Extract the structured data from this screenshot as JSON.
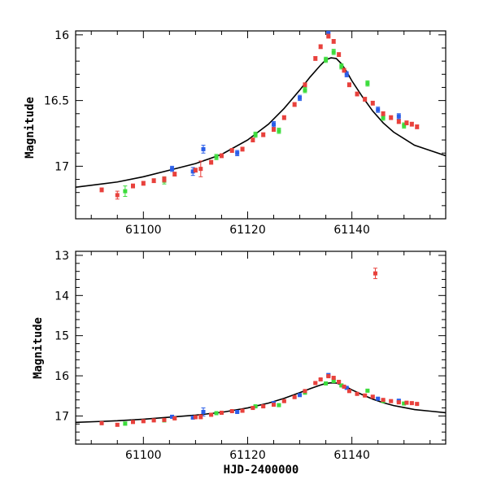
{
  "chart_data": [
    {
      "type": "scatter",
      "panel": "top",
      "title": "",
      "xlabel": "",
      "ylabel": "Magnitude",
      "xlim": [
        61087,
        61158
      ],
      "ylim": [
        17.4,
        15.97
      ],
      "y_inverted": true,
      "xticks": [
        61100,
        61120,
        61140
      ],
      "xtick_labels": [
        "61100",
        "61120",
        "61140"
      ],
      "yticks": [
        16,
        16.5,
        17
      ],
      "ytick_labels": [
        "16",
        "16.5",
        "17"
      ],
      "colors": {
        "red": "#e8413c",
        "green": "#3cdc3c",
        "blue": "#2a5ee8",
        "model": "#000000"
      },
      "model": {
        "name": "model curve",
        "x": [
          61087,
          61095,
          61100,
          61105,
          61110,
          61115,
          61120,
          61124,
          61127,
          61130,
          61132,
          61134,
          61135,
          61136,
          61137,
          61138,
          61139,
          61140,
          61142,
          61144,
          61146,
          61148,
          61150,
          61152,
          61155,
          61158
        ],
        "y": [
          17.16,
          17.12,
          17.08,
          17.03,
          16.98,
          16.91,
          16.8,
          16.68,
          16.56,
          16.42,
          16.32,
          16.23,
          16.19,
          16.175,
          16.18,
          16.22,
          16.28,
          16.35,
          16.47,
          16.58,
          16.67,
          16.74,
          16.79,
          16.84,
          16.88,
          16.92
        ]
      },
      "series": [
        {
          "name": "red",
          "x": [
            61092,
            61095,
            61098,
            61100,
            61102,
            61104,
            61106,
            61110,
            61111,
            61113,
            61115,
            61117,
            61119,
            61121,
            61123,
            61125,
            61127,
            61129,
            61131,
            61133,
            61134,
            61135.5,
            61136.5,
            61137.5,
            61138.5,
            61139.5,
            61141,
            61142.5,
            61144,
            61146,
            61147.5,
            61149,
            61150.5,
            61151.5,
            61152.5
          ],
          "y": [
            17.18,
            17.22,
            17.15,
            17.13,
            17.11,
            17.1,
            17.06,
            17.03,
            17.02,
            16.97,
            16.92,
            16.88,
            16.87,
            16.8,
            16.76,
            16.72,
            16.63,
            16.53,
            16.38,
            16.18,
            16.09,
            16.01,
            16.05,
            16.15,
            16.27,
            16.38,
            16.45,
            16.49,
            16.52,
            16.6,
            16.63,
            16.66,
            16.67,
            16.68,
            16.7
          ],
          "err": [
            0.015,
            0.03,
            0.015,
            0.015,
            0.015,
            0.02,
            0.015,
            0.015,
            0.06,
            0.015,
            0.015,
            0.015,
            0.015,
            0.015,
            0.015,
            0.015,
            0.015,
            0.015,
            0.015,
            0.015,
            0.015,
            0.015,
            0.015,
            0.015,
            0.015,
            0.015,
            0.015,
            0.015,
            0.015,
            0.015,
            0.015,
            0.015,
            0.015,
            0.015,
            0.015
          ]
        },
        {
          "name": "green",
          "x": [
            61096.5,
            61104,
            61114,
            61121.5,
            61126,
            61131,
            61135,
            61136.5,
            61138,
            61143,
            61146,
            61150
          ],
          "y": [
            17.19,
            17.11,
            16.93,
            16.76,
            16.73,
            16.42,
            16.19,
            16.13,
            16.24,
            16.37,
            16.63,
            16.69
          ],
          "err": [
            0.04,
            0.025,
            0.02,
            0.02,
            0.02,
            0.02,
            0.02,
            0.02,
            0.02,
            0.02,
            0.02,
            0.02
          ]
        },
        {
          "name": "blue",
          "x": [
            61105.5,
            61109.5,
            61111.5,
            61118,
            61125,
            61130,
            61135.5,
            61139,
            61145,
            61149
          ],
          "y": [
            17.02,
            17.04,
            16.87,
            16.9,
            16.68,
            16.48,
            15.98,
            16.3,
            16.57,
            16.62
          ],
          "err": [
            0.02,
            0.03,
            0.03,
            0.02,
            0.02,
            0.02,
            0.03,
            0.02,
            0.02,
            0.02
          ]
        }
      ]
    },
    {
      "type": "scatter",
      "panel": "bottom",
      "title": "",
      "xlabel": "HJD-2400000",
      "ylabel": "Magnitude",
      "xlim": [
        61087,
        61158
      ],
      "ylim": [
        17.7,
        12.9
      ],
      "y_inverted": true,
      "xticks": [
        61100,
        61120,
        61140
      ],
      "xtick_labels": [
        "61100",
        "61120",
        "61140"
      ],
      "yticks": [
        13,
        14,
        15,
        16,
        17
      ],
      "ytick_labels": [
        "13",
        "14",
        "15",
        "16",
        "17"
      ],
      "model": {
        "name": "model curve",
        "x": [
          61087,
          61095,
          61100,
          61105,
          61110,
          61115,
          61120,
          61124,
          61127,
          61130,
          61132,
          61134,
          61135,
          61136,
          61137,
          61138,
          61139,
          61140,
          61142,
          61144,
          61146,
          61148,
          61150,
          61152,
          61155,
          61158
        ],
        "y": [
          17.16,
          17.12,
          17.08,
          17.03,
          16.98,
          16.91,
          16.8,
          16.68,
          16.56,
          16.42,
          16.32,
          16.23,
          16.19,
          16.175,
          16.18,
          16.22,
          16.28,
          16.35,
          16.47,
          16.58,
          16.67,
          16.74,
          16.79,
          16.84,
          16.88,
          16.92
        ]
      },
      "series": [
        {
          "name": "red",
          "x": [
            61092,
            61095,
            61098,
            61100,
            61102,
            61104,
            61106,
            61110,
            61111,
            61113,
            61115,
            61117,
            61119,
            61121,
            61123,
            61125,
            61127,
            61129,
            61131,
            61133,
            61134,
            61135.5,
            61136.5,
            61137.5,
            61138.5,
            61139.5,
            61141,
            61142.5,
            61144,
            61144.5,
            61146,
            61147.5,
            61149,
            61150.5,
            61151.5,
            61152.5
          ],
          "y": [
            17.18,
            17.22,
            17.15,
            17.13,
            17.11,
            17.1,
            17.06,
            17.03,
            17.02,
            16.97,
            16.92,
            16.88,
            16.87,
            16.8,
            16.76,
            16.72,
            16.63,
            16.53,
            16.38,
            16.18,
            16.09,
            16.01,
            16.05,
            16.15,
            16.27,
            16.38,
            16.45,
            16.49,
            16.52,
            13.45,
            16.6,
            16.63,
            16.66,
            16.67,
            16.68,
            16.7
          ],
          "err": [
            0.02,
            0.03,
            0.02,
            0.02,
            0.02,
            0.02,
            0.02,
            0.02,
            0.05,
            0.02,
            0.02,
            0.02,
            0.02,
            0.02,
            0.02,
            0.02,
            0.02,
            0.02,
            0.02,
            0.02,
            0.02,
            0.02,
            0.02,
            0.02,
            0.02,
            0.02,
            0.02,
            0.02,
            0.02,
            0.13,
            0.02,
            0.02,
            0.02,
            0.02,
            0.02,
            0.02
          ]
        },
        {
          "name": "green",
          "x": [
            61096.5,
            61104,
            61114,
            61121.5,
            61126,
            61131,
            61135,
            61136.5,
            61138,
            61143,
            61146,
            61150
          ],
          "y": [
            17.19,
            17.11,
            16.93,
            16.76,
            16.73,
            16.42,
            16.19,
            16.13,
            16.24,
            16.37,
            16.63,
            16.69
          ],
          "err": [
            0.04,
            0.03,
            0.02,
            0.02,
            0.02,
            0.02,
            0.02,
            0.02,
            0.02,
            0.02,
            0.02,
            0.02
          ]
        },
        {
          "name": "blue",
          "x": [
            61105.5,
            61109.5,
            61111.5,
            61118,
            61125,
            61130,
            61135.5,
            61139,
            61145,
            61149
          ],
          "y": [
            17.02,
            17.04,
            16.9,
            16.9,
            16.68,
            16.48,
            15.98,
            16.3,
            16.57,
            16.62
          ],
          "err": [
            0.02,
            0.03,
            0.1,
            0.02,
            0.02,
            0.02,
            0.03,
            0.02,
            0.02,
            0.02
          ]
        }
      ]
    }
  ]
}
